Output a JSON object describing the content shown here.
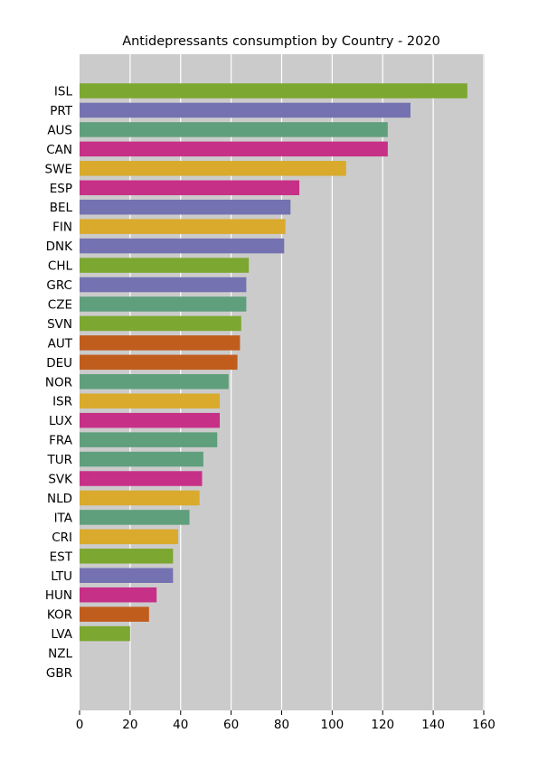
{
  "chart_data": {
    "type": "bar",
    "orientation": "horizontal",
    "title": "Antidepressants consumption by Country - 2020",
    "xlabel": "",
    "ylabel": "",
    "xlim": [
      0,
      160
    ],
    "xticks": [
      0,
      20,
      40,
      60,
      80,
      100,
      120,
      140,
      160
    ],
    "grid": "vertical",
    "background_color": "#cbcbcb",
    "categories": [
      "ISL",
      "PRT",
      "AUS",
      "CAN",
      "SWE",
      "ESP",
      "BEL",
      "FIN",
      "DNK",
      "CHL",
      "GRC",
      "CZE",
      "SVN",
      "AUT",
      "DEU",
      "NOR",
      "ISR",
      "LUX",
      "FRA",
      "TUR",
      "SVK",
      "NLD",
      "ITA",
      "CRI",
      "EST",
      "LTU",
      "HUN",
      "KOR",
      "LVA",
      "NZL",
      "GBR"
    ],
    "values": [
      153.5,
      131,
      122,
      122,
      105.5,
      87,
      83.5,
      81.5,
      81,
      67,
      66,
      66,
      64,
      63.5,
      62.5,
      59,
      55.5,
      55.5,
      54.5,
      49,
      48.5,
      47.5,
      43.5,
      39,
      37,
      37,
      30.5,
      27.5,
      20,
      null,
      null
    ],
    "colors": [
      "#7ca730",
      "#7472b1",
      "#5f9f7c",
      "#c73087",
      "#d9aa2c",
      "#c73087",
      "#7472b1",
      "#d9aa2c",
      "#7472b1",
      "#7ca730",
      "#7472b1",
      "#5f9f7c",
      "#7ca730",
      "#c05d1c",
      "#c05d1c",
      "#5f9f7c",
      "#d9aa2c",
      "#c73087",
      "#5f9f7c",
      "#5f9f7c",
      "#c73087",
      "#d9aa2c",
      "#5f9f7c",
      "#d9aa2c",
      "#7ca730",
      "#7472b1",
      "#c73087",
      "#c05d1c",
      "#7ca730",
      null,
      null
    ]
  }
}
